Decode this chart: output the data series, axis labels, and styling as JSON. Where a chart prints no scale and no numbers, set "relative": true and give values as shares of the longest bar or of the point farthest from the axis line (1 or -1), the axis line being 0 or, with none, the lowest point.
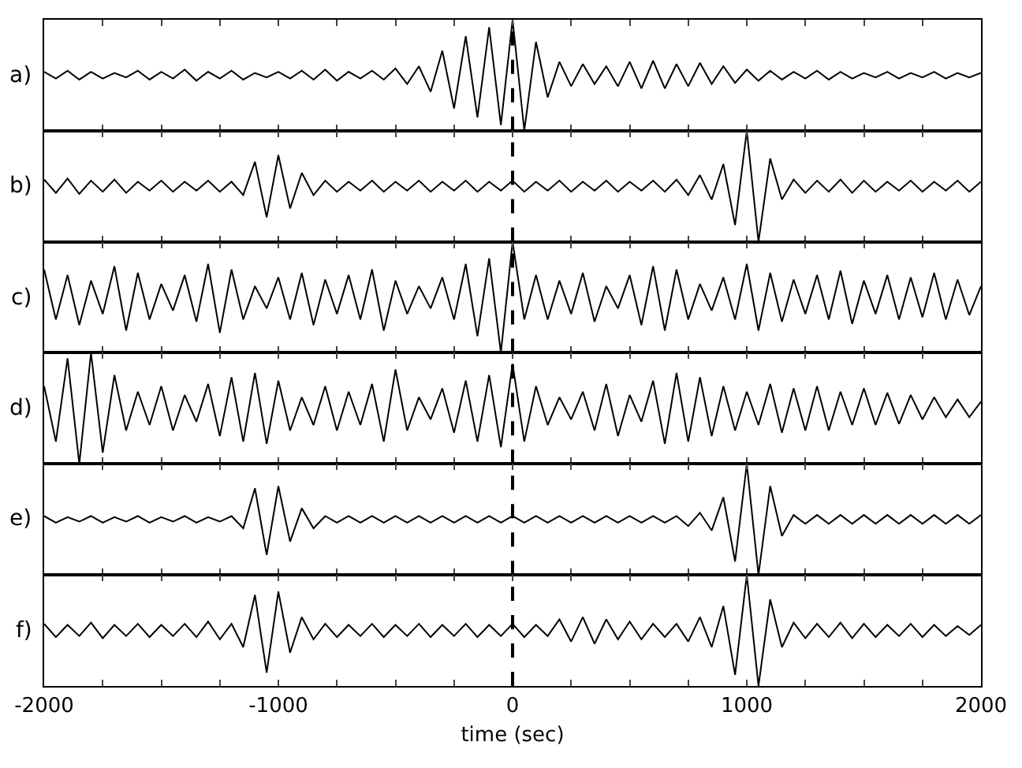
{
  "chart_data": [
    {
      "type": "line",
      "title": "a)",
      "relative": true,
      "tick_labels": false,
      "marker": "none",
      "line_style": "solid",
      "xlim": [
        -2000,
        2000
      ],
      "xticks": [
        -2000,
        {
          "value": -1750,
          "label": null
        },
        {
          "value": -1500,
          "label": null
        },
        {
          "value": -1250,
          "label": null
        },
        -1000,
        {
          "value": -750,
          "label": null
        },
        {
          "value": -500,
          "label": null
        },
        {
          "value": -250,
          "label": null
        },
        0,
        {
          "value": 250,
          "label": null
        },
        {
          "value": 500,
          "label": null
        },
        {
          "value": 750,
          "label": null
        },
        1000,
        {
          "value": 1250,
          "label": null
        },
        {
          "value": 1500,
          "label": null
        },
        {
          "value": 1750,
          "label": null
        },
        2000
      ],
      "ref_lines": [
        {
          "axis": "x",
          "value": 0,
          "line_style": "dashed",
          "color": "#000000"
        }
      ],
      "series": [
        {
          "color": "#000000",
          "x": [
            -2000,
            -1950,
            -1900,
            -1850,
            -1800,
            -1750,
            -1700,
            -1650,
            -1600,
            -1550,
            -1500,
            -1450,
            -1400,
            -1350,
            -1300,
            -1250,
            -1200,
            -1150,
            -1100,
            -1050,
            -1000,
            -950,
            -900,
            -850,
            -800,
            -750,
            -700,
            -650,
            -600,
            -550,
            -500,
            -450,
            -400,
            -350,
            -300,
            -250,
            -200,
            -150,
            -100,
            -50,
            0,
            50,
            100,
            150,
            200,
            250,
            300,
            350,
            400,
            450,
            500,
            550,
            600,
            650,
            700,
            750,
            800,
            850,
            900,
            950,
            1000,
            1050,
            1100,
            1150,
            1200,
            1250,
            1300,
            1350,
            1400,
            1450,
            1500,
            1550,
            1600,
            1650,
            1700,
            1750,
            1800,
            1850,
            1900,
            1950,
            2000
          ],
          "values": [
            0.53,
            0.47,
            0.54,
            0.46,
            0.53,
            0.47,
            0.52,
            0.48,
            0.54,
            0.46,
            0.53,
            0.47,
            0.55,
            0.45,
            0.53,
            0.47,
            0.54,
            0.46,
            0.52,
            0.48,
            0.53,
            0.47,
            0.54,
            0.46,
            0.55,
            0.45,
            0.53,
            0.47,
            0.54,
            0.46,
            0.56,
            0.42,
            0.58,
            0.35,
            0.72,
            0.2,
            0.85,
            0.12,
            0.93,
            0.05,
            1.0,
            0.0,
            0.8,
            0.3,
            0.62,
            0.4,
            0.6,
            0.42,
            0.58,
            0.4,
            0.62,
            0.38,
            0.63,
            0.38,
            0.6,
            0.4,
            0.61,
            0.42,
            0.58,
            0.43,
            0.55,
            0.45,
            0.54,
            0.46,
            0.53,
            0.47,
            0.54,
            0.46,
            0.53,
            0.47,
            0.52,
            0.48,
            0.53,
            0.47,
            0.52,
            0.48,
            0.53,
            0.47,
            0.52,
            0.48,
            0.52
          ]
        }
      ]
    },
    {
      "type": "line",
      "title": "b)",
      "relative": true,
      "tick_labels": false,
      "marker": "none",
      "line_style": "solid",
      "xlim": [
        -2000,
        2000
      ],
      "xticks": [
        -2000,
        {
          "value": -1750,
          "label": null
        },
        {
          "value": -1500,
          "label": null
        },
        {
          "value": -1250,
          "label": null
        },
        -1000,
        {
          "value": -750,
          "label": null
        },
        {
          "value": -500,
          "label": null
        },
        {
          "value": -250,
          "label": null
        },
        0,
        {
          "value": 250,
          "label": null
        },
        {
          "value": 500,
          "label": null
        },
        {
          "value": 750,
          "label": null
        },
        1000,
        {
          "value": 1250,
          "label": null
        },
        {
          "value": 1500,
          "label": null
        },
        {
          "value": 1750,
          "label": null
        },
        2000
      ],
      "ref_lines": [
        {
          "axis": "x",
          "value": 0,
          "line_style": "dashed",
          "color": "#000000"
        }
      ],
      "series": [
        {
          "color": "#000000",
          "x": [
            -2000,
            -1950,
            -1900,
            -1850,
            -1800,
            -1750,
            -1700,
            -1650,
            -1600,
            -1550,
            -1500,
            -1450,
            -1400,
            -1350,
            -1300,
            -1250,
            -1200,
            -1150,
            -1100,
            -1050,
            -1000,
            -950,
            -900,
            -850,
            -800,
            -750,
            -700,
            -650,
            -600,
            -550,
            -500,
            -450,
            -400,
            -350,
            -300,
            -250,
            -200,
            -150,
            -100,
            -50,
            0,
            50,
            100,
            150,
            200,
            250,
            300,
            350,
            400,
            450,
            500,
            550,
            600,
            650,
            700,
            750,
            800,
            850,
            900,
            950,
            1000,
            1050,
            1100,
            1150,
            1200,
            1250,
            1300,
            1350,
            1400,
            1450,
            1500,
            1550,
            1600,
            1650,
            1700,
            1750,
            1800,
            1850,
            1900,
            1950,
            2000
          ],
          "values": [
            0.56,
            0.44,
            0.57,
            0.43,
            0.55,
            0.45,
            0.56,
            0.44,
            0.54,
            0.46,
            0.55,
            0.45,
            0.54,
            0.46,
            0.55,
            0.45,
            0.54,
            0.42,
            0.72,
            0.22,
            0.78,
            0.3,
            0.62,
            0.42,
            0.55,
            0.45,
            0.54,
            0.46,
            0.55,
            0.45,
            0.54,
            0.46,
            0.55,
            0.45,
            0.54,
            0.46,
            0.55,
            0.45,
            0.54,
            0.46,
            0.55,
            0.45,
            0.54,
            0.46,
            0.55,
            0.45,
            0.54,
            0.46,
            0.55,
            0.45,
            0.54,
            0.46,
            0.55,
            0.45,
            0.56,
            0.42,
            0.6,
            0.38,
            0.7,
            0.15,
            1.0,
            0.0,
            0.75,
            0.38,
            0.56,
            0.44,
            0.55,
            0.45,
            0.56,
            0.44,
            0.55,
            0.45,
            0.54,
            0.46,
            0.55,
            0.45,
            0.54,
            0.46,
            0.55,
            0.45,
            0.54
          ]
        }
      ]
    },
    {
      "type": "line",
      "title": "c)",
      "relative": true,
      "tick_labels": false,
      "marker": "none",
      "line_style": "solid",
      "xlim": [
        -2000,
        2000
      ],
      "xticks": [
        -2000,
        {
          "value": -1750,
          "label": null
        },
        {
          "value": -1500,
          "label": null
        },
        {
          "value": -1250,
          "label": null
        },
        -1000,
        {
          "value": -750,
          "label": null
        },
        {
          "value": -500,
          "label": null
        },
        {
          "value": -250,
          "label": null
        },
        0,
        {
          "value": 250,
          "label": null
        },
        {
          "value": 500,
          "label": null
        },
        {
          "value": 750,
          "label": null
        },
        1000,
        {
          "value": 1250,
          "label": null
        },
        {
          "value": 1500,
          "label": null
        },
        {
          "value": 1750,
          "label": null
        },
        2000
      ],
      "ref_lines": [
        {
          "axis": "x",
          "value": 0,
          "line_style": "dashed",
          "color": "#000000"
        }
      ],
      "series": [
        {
          "color": "#000000",
          "x": [
            -2000,
            -1950,
            -1900,
            -1850,
            -1800,
            -1750,
            -1700,
            -1650,
            -1600,
            -1550,
            -1500,
            -1450,
            -1400,
            -1350,
            -1300,
            -1250,
            -1200,
            -1150,
            -1100,
            -1050,
            -1000,
            -950,
            -900,
            -850,
            -800,
            -750,
            -700,
            -650,
            -600,
            -550,
            -500,
            -450,
            -400,
            -350,
            -300,
            -250,
            -200,
            -150,
            -100,
            -50,
            0,
            50,
            100,
            150,
            200,
            250,
            300,
            350,
            400,
            450,
            500,
            550,
            600,
            650,
            700,
            750,
            800,
            850,
            900,
            950,
            1000,
            1050,
            1100,
            1150,
            1200,
            1250,
            1300,
            1350,
            1400,
            1450,
            1500,
            1550,
            1600,
            1650,
            1700,
            1750,
            1800,
            1850,
            1900,
            1950,
            2000
          ],
          "values": [
            0.75,
            0.3,
            0.7,
            0.25,
            0.65,
            0.35,
            0.78,
            0.2,
            0.72,
            0.3,
            0.62,
            0.38,
            0.7,
            0.28,
            0.8,
            0.18,
            0.75,
            0.3,
            0.6,
            0.4,
            0.68,
            0.3,
            0.72,
            0.25,
            0.66,
            0.35,
            0.7,
            0.3,
            0.75,
            0.2,
            0.65,
            0.35,
            0.6,
            0.4,
            0.68,
            0.3,
            0.8,
            0.15,
            0.85,
            0.0,
            1.0,
            0.3,
            0.7,
            0.3,
            0.65,
            0.35,
            0.72,
            0.28,
            0.6,
            0.4,
            0.7,
            0.25,
            0.78,
            0.2,
            0.75,
            0.3,
            0.62,
            0.38,
            0.68,
            0.3,
            0.8,
            0.2,
            0.72,
            0.28,
            0.66,
            0.35,
            0.7,
            0.3,
            0.74,
            0.26,
            0.65,
            0.35,
            0.7,
            0.3,
            0.68,
            0.32,
            0.72,
            0.3,
            0.66,
            0.34,
            0.6
          ]
        }
      ]
    },
    {
      "type": "line",
      "title": "d)",
      "relative": true,
      "tick_labels": false,
      "marker": "none",
      "line_style": "solid",
      "xlim": [
        -2000,
        2000
      ],
      "xticks": [
        -2000,
        {
          "value": -1750,
          "label": null
        },
        {
          "value": -1500,
          "label": null
        },
        {
          "value": -1250,
          "label": null
        },
        -1000,
        {
          "value": -750,
          "label": null
        },
        {
          "value": -500,
          "label": null
        },
        {
          "value": -250,
          "label": null
        },
        0,
        {
          "value": 250,
          "label": null
        },
        {
          "value": 500,
          "label": null
        },
        {
          "value": 750,
          "label": null
        },
        1000,
        {
          "value": 1250,
          "label": null
        },
        {
          "value": 1500,
          "label": null
        },
        {
          "value": 1750,
          "label": null
        },
        2000
      ],
      "ref_lines": [
        {
          "axis": "x",
          "value": 0,
          "line_style": "dashed",
          "color": "#000000"
        }
      ],
      "series": [
        {
          "color": "#000000",
          "x": [
            -2000,
            -1950,
            -1900,
            -1850,
            -1800,
            -1750,
            -1700,
            -1650,
            -1600,
            -1550,
            -1500,
            -1450,
            -1400,
            -1350,
            -1300,
            -1250,
            -1200,
            -1150,
            -1100,
            -1050,
            -1000,
            -950,
            -900,
            -850,
            -800,
            -750,
            -700,
            -650,
            -600,
            -550,
            -500,
            -450,
            -400,
            -350,
            -300,
            -250,
            -200,
            -150,
            -100,
            -50,
            0,
            50,
            100,
            150,
            200,
            250,
            300,
            350,
            400,
            450,
            500,
            550,
            600,
            650,
            700,
            750,
            800,
            850,
            900,
            950,
            1000,
            1050,
            1100,
            1150,
            1200,
            1250,
            1300,
            1350,
            1400,
            1450,
            1500,
            1550,
            1600,
            1650,
            1700,
            1750,
            1800,
            1850,
            1900,
            1950,
            2000
          ],
          "values": [
            0.7,
            0.2,
            0.95,
            0.0,
            1.0,
            0.1,
            0.8,
            0.3,
            0.65,
            0.35,
            0.7,
            0.3,
            0.62,
            0.38,
            0.72,
            0.25,
            0.78,
            0.2,
            0.82,
            0.18,
            0.75,
            0.3,
            0.6,
            0.35,
            0.7,
            0.3,
            0.65,
            0.35,
            0.72,
            0.2,
            0.85,
            0.3,
            0.6,
            0.4,
            0.68,
            0.28,
            0.75,
            0.2,
            0.8,
            0.15,
            0.9,
            0.2,
            0.7,
            0.35,
            0.6,
            0.4,
            0.65,
            0.3,
            0.72,
            0.25,
            0.62,
            0.38,
            0.75,
            0.18,
            0.82,
            0.2,
            0.78,
            0.25,
            0.7,
            0.3,
            0.65,
            0.35,
            0.72,
            0.28,
            0.68,
            0.3,
            0.7,
            0.3,
            0.65,
            0.35,
            0.68,
            0.35,
            0.64,
            0.36,
            0.62,
            0.4,
            0.6,
            0.42,
            0.58,
            0.42,
            0.56
          ]
        }
      ]
    },
    {
      "type": "line",
      "title": "e)",
      "relative": true,
      "tick_labels": false,
      "marker": "none",
      "line_style": "solid",
      "xlim": [
        -2000,
        2000
      ],
      "xticks": [
        -2000,
        {
          "value": -1750,
          "label": null
        },
        {
          "value": -1500,
          "label": null
        },
        {
          "value": -1250,
          "label": null
        },
        -1000,
        {
          "value": -750,
          "label": null
        },
        {
          "value": -500,
          "label": null
        },
        {
          "value": -250,
          "label": null
        },
        0,
        {
          "value": 250,
          "label": null
        },
        {
          "value": 500,
          "label": null
        },
        {
          "value": 750,
          "label": null
        },
        1000,
        {
          "value": 1250,
          "label": null
        },
        {
          "value": 1500,
          "label": null
        },
        {
          "value": 1750,
          "label": null
        },
        2000
      ],
      "ref_lines": [
        {
          "axis": "x",
          "value": 0,
          "line_style": "dashed",
          "color": "#000000"
        }
      ],
      "series": [
        {
          "color": "#000000",
          "x": [
            -2000,
            -1950,
            -1900,
            -1850,
            -1800,
            -1750,
            -1700,
            -1650,
            -1600,
            -1550,
            -1500,
            -1450,
            -1400,
            -1350,
            -1300,
            -1250,
            -1200,
            -1150,
            -1100,
            -1050,
            -1000,
            -950,
            -900,
            -850,
            -800,
            -750,
            -700,
            -650,
            -600,
            -550,
            -500,
            -450,
            -400,
            -350,
            -300,
            -250,
            -200,
            -150,
            -100,
            -50,
            0,
            50,
            100,
            150,
            200,
            250,
            300,
            350,
            400,
            450,
            500,
            550,
            600,
            650,
            700,
            750,
            800,
            850,
            900,
            950,
            1000,
            1050,
            1100,
            1150,
            1200,
            1250,
            1300,
            1350,
            1400,
            1450,
            1500,
            1550,
            1600,
            1650,
            1700,
            1750,
            1800,
            1850,
            1900,
            1950,
            2000
          ],
          "values": [
            0.53,
            0.47,
            0.52,
            0.48,
            0.53,
            0.47,
            0.52,
            0.48,
            0.53,
            0.47,
            0.52,
            0.48,
            0.53,
            0.47,
            0.52,
            0.48,
            0.53,
            0.42,
            0.78,
            0.18,
            0.8,
            0.3,
            0.6,
            0.42,
            0.53,
            0.47,
            0.53,
            0.47,
            0.53,
            0.47,
            0.53,
            0.47,
            0.53,
            0.47,
            0.53,
            0.47,
            0.53,
            0.47,
            0.53,
            0.47,
            0.53,
            0.47,
            0.53,
            0.47,
            0.53,
            0.47,
            0.53,
            0.47,
            0.53,
            0.47,
            0.53,
            0.47,
            0.53,
            0.47,
            0.53,
            0.44,
            0.56,
            0.4,
            0.7,
            0.12,
            1.0,
            0.0,
            0.8,
            0.35,
            0.54,
            0.46,
            0.54,
            0.46,
            0.54,
            0.46,
            0.54,
            0.46,
            0.54,
            0.46,
            0.54,
            0.46,
            0.54,
            0.46,
            0.54,
            0.46,
            0.54
          ]
        }
      ]
    },
    {
      "type": "line",
      "title": "f)",
      "relative": true,
      "tick_labels": "x",
      "marker": "none",
      "line_style": "solid",
      "xlabel": "time (sec)",
      "xlim": [
        -2000,
        2000
      ],
      "xticks": [
        -2000,
        {
          "value": -1750,
          "label": null
        },
        {
          "value": -1500,
          "label": null
        },
        {
          "value": -1250,
          "label": null
        },
        -1000,
        {
          "value": -750,
          "label": null
        },
        {
          "value": -500,
          "label": null
        },
        {
          "value": -250,
          "label": null
        },
        0,
        {
          "value": 250,
          "label": null
        },
        {
          "value": 500,
          "label": null
        },
        {
          "value": 750,
          "label": null
        },
        1000,
        {
          "value": 1250,
          "label": null
        },
        {
          "value": 1500,
          "label": null
        },
        {
          "value": 1750,
          "label": null
        },
        2000
      ],
      "ref_lines": [
        {
          "axis": "x",
          "value": 0,
          "line_style": "dashed",
          "color": "#000000"
        }
      ],
      "series": [
        {
          "color": "#000000",
          "x": [
            -2000,
            -1950,
            -1900,
            -1850,
            -1800,
            -1750,
            -1700,
            -1650,
            -1600,
            -1550,
            -1500,
            -1450,
            -1400,
            -1350,
            -1300,
            -1250,
            -1200,
            -1150,
            -1100,
            -1050,
            -1000,
            -950,
            -900,
            -850,
            -800,
            -750,
            -700,
            -650,
            -600,
            -550,
            -500,
            -450,
            -400,
            -350,
            -300,
            -250,
            -200,
            -150,
            -100,
            -50,
            0,
            50,
            100,
            150,
            200,
            250,
            300,
            350,
            400,
            450,
            500,
            550,
            600,
            650,
            700,
            750,
            800,
            850,
            900,
            950,
            1000,
            1050,
            1100,
            1150,
            1200,
            1250,
            1300,
            1350,
            1400,
            1450,
            1500,
            1550,
            1600,
            1650,
            1700,
            1750,
            1800,
            1850,
            1900,
            1950,
            2000
          ],
          "values": [
            0.56,
            0.44,
            0.55,
            0.45,
            0.57,
            0.43,
            0.55,
            0.45,
            0.56,
            0.44,
            0.55,
            0.45,
            0.56,
            0.44,
            0.58,
            0.42,
            0.56,
            0.35,
            0.82,
            0.12,
            0.85,
            0.3,
            0.62,
            0.42,
            0.56,
            0.44,
            0.55,
            0.45,
            0.56,
            0.44,
            0.55,
            0.45,
            0.56,
            0.44,
            0.55,
            0.45,
            0.56,
            0.44,
            0.55,
            0.45,
            0.56,
            0.44,
            0.55,
            0.45,
            0.6,
            0.4,
            0.62,
            0.38,
            0.6,
            0.42,
            0.58,
            0.42,
            0.56,
            0.44,
            0.56,
            0.4,
            0.62,
            0.35,
            0.72,
            0.1,
            1.0,
            0.0,
            0.78,
            0.35,
            0.57,
            0.43,
            0.56,
            0.44,
            0.57,
            0.43,
            0.56,
            0.44,
            0.55,
            0.45,
            0.56,
            0.44,
            0.55,
            0.45,
            0.54,
            0.46,
            0.55
          ]
        }
      ]
    }
  ]
}
